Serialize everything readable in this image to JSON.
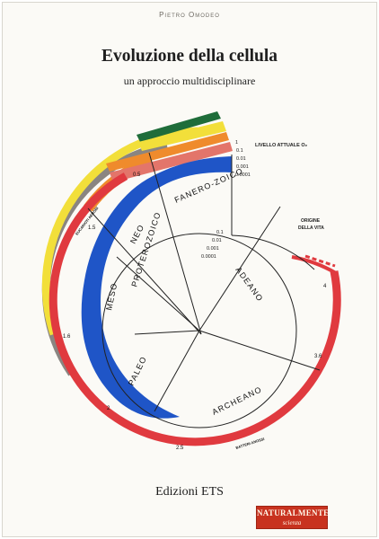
{
  "cover": {
    "author": "Pietro Omodeo",
    "title": "Evoluzione della cellula",
    "subtitle": "un approccio multidisciplinare",
    "publisher": "Edizioni ETS",
    "series_name": "NATURALMENTE",
    "series_sub": "scienza"
  },
  "diagram": {
    "level_label": "LIVELLO ATTUALE O₂",
    "origin_label_1": "ORIGINE",
    "origin_label_2": "DELLA VITA",
    "outer_scale": [
      "1",
      "0.1",
      "0.01",
      "0.001",
      "0.0001"
    ],
    "inner_scale": [
      "0.1",
      "0.01",
      "0.001",
      "0.0001"
    ],
    "fanerozoico": "FANERO-ZOICO",
    "neo": "NEO",
    "meso": "MESO",
    "paleo": "PALEO",
    "proterozoico": "PROTEROZOICO",
    "adeano": "ADEANO",
    "archeano": "ARCHEANO",
    "batteri": "BATTERI ANOSSI",
    "eucarioti": "EUCARIOTI AEROBI",
    "time_labels": [
      "0.5",
      "1.6",
      "2.5",
      "3.6",
      "4",
      "1.5",
      "2"
    ],
    "colors": {
      "red": "#e03a3f",
      "blue": "#1f55c7",
      "yellow": "#f2df3a",
      "orange": "#ef8b2c",
      "green": "#1f6d3a",
      "grey": "#8a8581"
    }
  }
}
